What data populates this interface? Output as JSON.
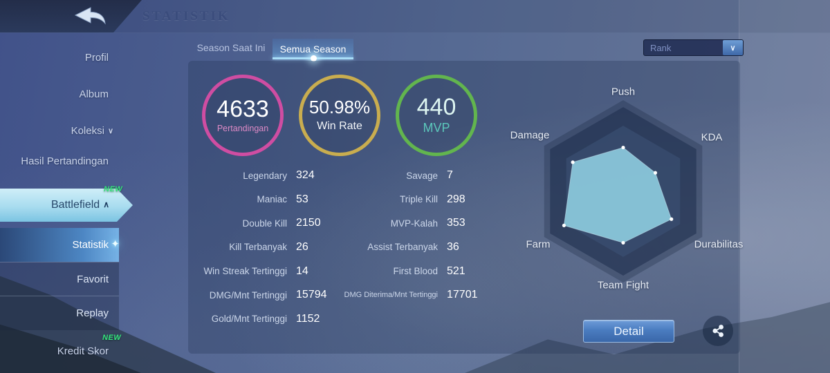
{
  "header": {
    "title": "STATISTIK"
  },
  "icons": {
    "chevron_down": "∨",
    "chevron_up": "∧",
    "dropdown_chevron": "∨",
    "sparkle": "✦"
  },
  "colors": {
    "new_badge_green": "#35e57c",
    "circle1_ring": "#cf4da2",
    "circle1_label": "#de8ac6",
    "circle2_ring": "#c9ad4f",
    "circle3_ring": "#62b54e",
    "circle3_label": "#5cc8bc"
  },
  "sidebar": {
    "items": [
      {
        "label": "Profil"
      },
      {
        "label": "Album"
      },
      {
        "label": "Koleksi"
      },
      {
        "label": "Hasil Pertandingan"
      },
      {
        "label": "Battlefield",
        "badge": "NEW"
      }
    ],
    "subitems": [
      {
        "label": "Statistik"
      },
      {
        "label": "Favorit"
      },
      {
        "label": "Replay"
      }
    ],
    "bottom_item": {
      "label": "Kredit Skor",
      "badge": "NEW"
    }
  },
  "tabs": [
    {
      "label": "Season Saat Ini",
      "active": false
    },
    {
      "label": "Semua Season",
      "active": true
    }
  ],
  "rank_dropdown": {
    "value": "Rank"
  },
  "summary_circles": [
    {
      "value": "4633",
      "label": "Pertandingan"
    },
    {
      "value": "50.98%",
      "label": "Win Rate"
    },
    {
      "value": "440",
      "label": "MVP"
    }
  ],
  "stats_left": [
    {
      "label": "Legendary",
      "value": "324"
    },
    {
      "label": "Maniac",
      "value": "53"
    },
    {
      "label": "Double Kill",
      "value": "2150"
    },
    {
      "label": "Kill Terbanyak",
      "value": "26"
    },
    {
      "label": "Win Streak Tertinggi",
      "value": "14"
    },
    {
      "label": "DMG/Mnt Tertinggi",
      "value": "15794"
    },
    {
      "label": "Gold/Mnt Tertinggi",
      "value": "1152"
    }
  ],
  "stats_right": [
    {
      "label": "Savage",
      "value": "7"
    },
    {
      "label": "Triple Kill",
      "value": "298"
    },
    {
      "label": "MVP-Kalah",
      "value": "353"
    },
    {
      "label": "Assist Terbanyak",
      "value": "36"
    },
    {
      "label": "First Blood",
      "value": "521"
    },
    {
      "label": "DMG Diterima/Mnt Tertinggi",
      "value": "17701"
    }
  ],
  "chart_data": {
    "type": "radar",
    "axes": [
      "Push",
      "KDA",
      "Durabilitas",
      "Team Fight",
      "Farm",
      "Damage"
    ],
    "values_pct": [
      52,
      44,
      66,
      61,
      81,
      69
    ],
    "max": 100,
    "fill_color": "#8ccadd",
    "legend": "none",
    "grid": "hexagon"
  },
  "actions": {
    "detail_label": "Detail"
  }
}
